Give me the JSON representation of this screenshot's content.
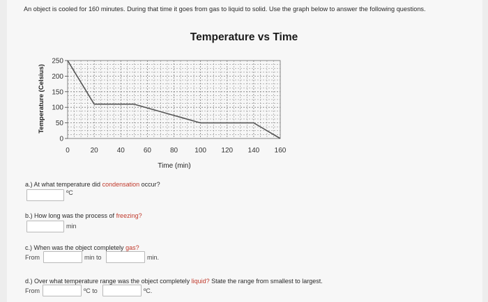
{
  "intro": "An object is cooled for 160 minutes. During that time it goes from gas to liquid to solid. Use the graph below to answer the following questions.",
  "chart_data": {
    "type": "line",
    "title": "Temperature vs Time",
    "xlabel": "Time (min)",
    "ylabel": "Temperature (Celsius)",
    "xlim": [
      0,
      160
    ],
    "ylim": [
      0,
      250
    ],
    "xticks": [
      0,
      20,
      40,
      60,
      80,
      100,
      120,
      140,
      160
    ],
    "yticks": [
      0,
      50,
      100,
      150,
      200,
      250
    ],
    "grid": true,
    "series": [
      {
        "x": [
          0,
          20,
          50,
          100,
          140,
          160
        ],
        "y": [
          250,
          110,
          110,
          50,
          50,
          0
        ]
      }
    ]
  },
  "questions": {
    "a": {
      "before": "a.) At what temperature did ",
      "highlight": "condensation",
      "after": " occur?",
      "unit": "ºC"
    },
    "b": {
      "before": "b.) How long was the process of ",
      "highlight": "freezing?",
      "unit": "min"
    },
    "c": {
      "before": "c.) When was the object completely ",
      "highlight": "gas?",
      "from": "From",
      "mid": "min to",
      "end": "min."
    },
    "d": {
      "before": "d.) Over what temperature range was the object completely ",
      "highlight": "liquid?",
      "after": " State the range from smallest to largest.",
      "from": "From",
      "mid": "ºC to",
      "end": "ºC."
    }
  },
  "colors": {
    "accent": "#c0392b",
    "line": "#555555",
    "grid": "#7a7a7a"
  }
}
